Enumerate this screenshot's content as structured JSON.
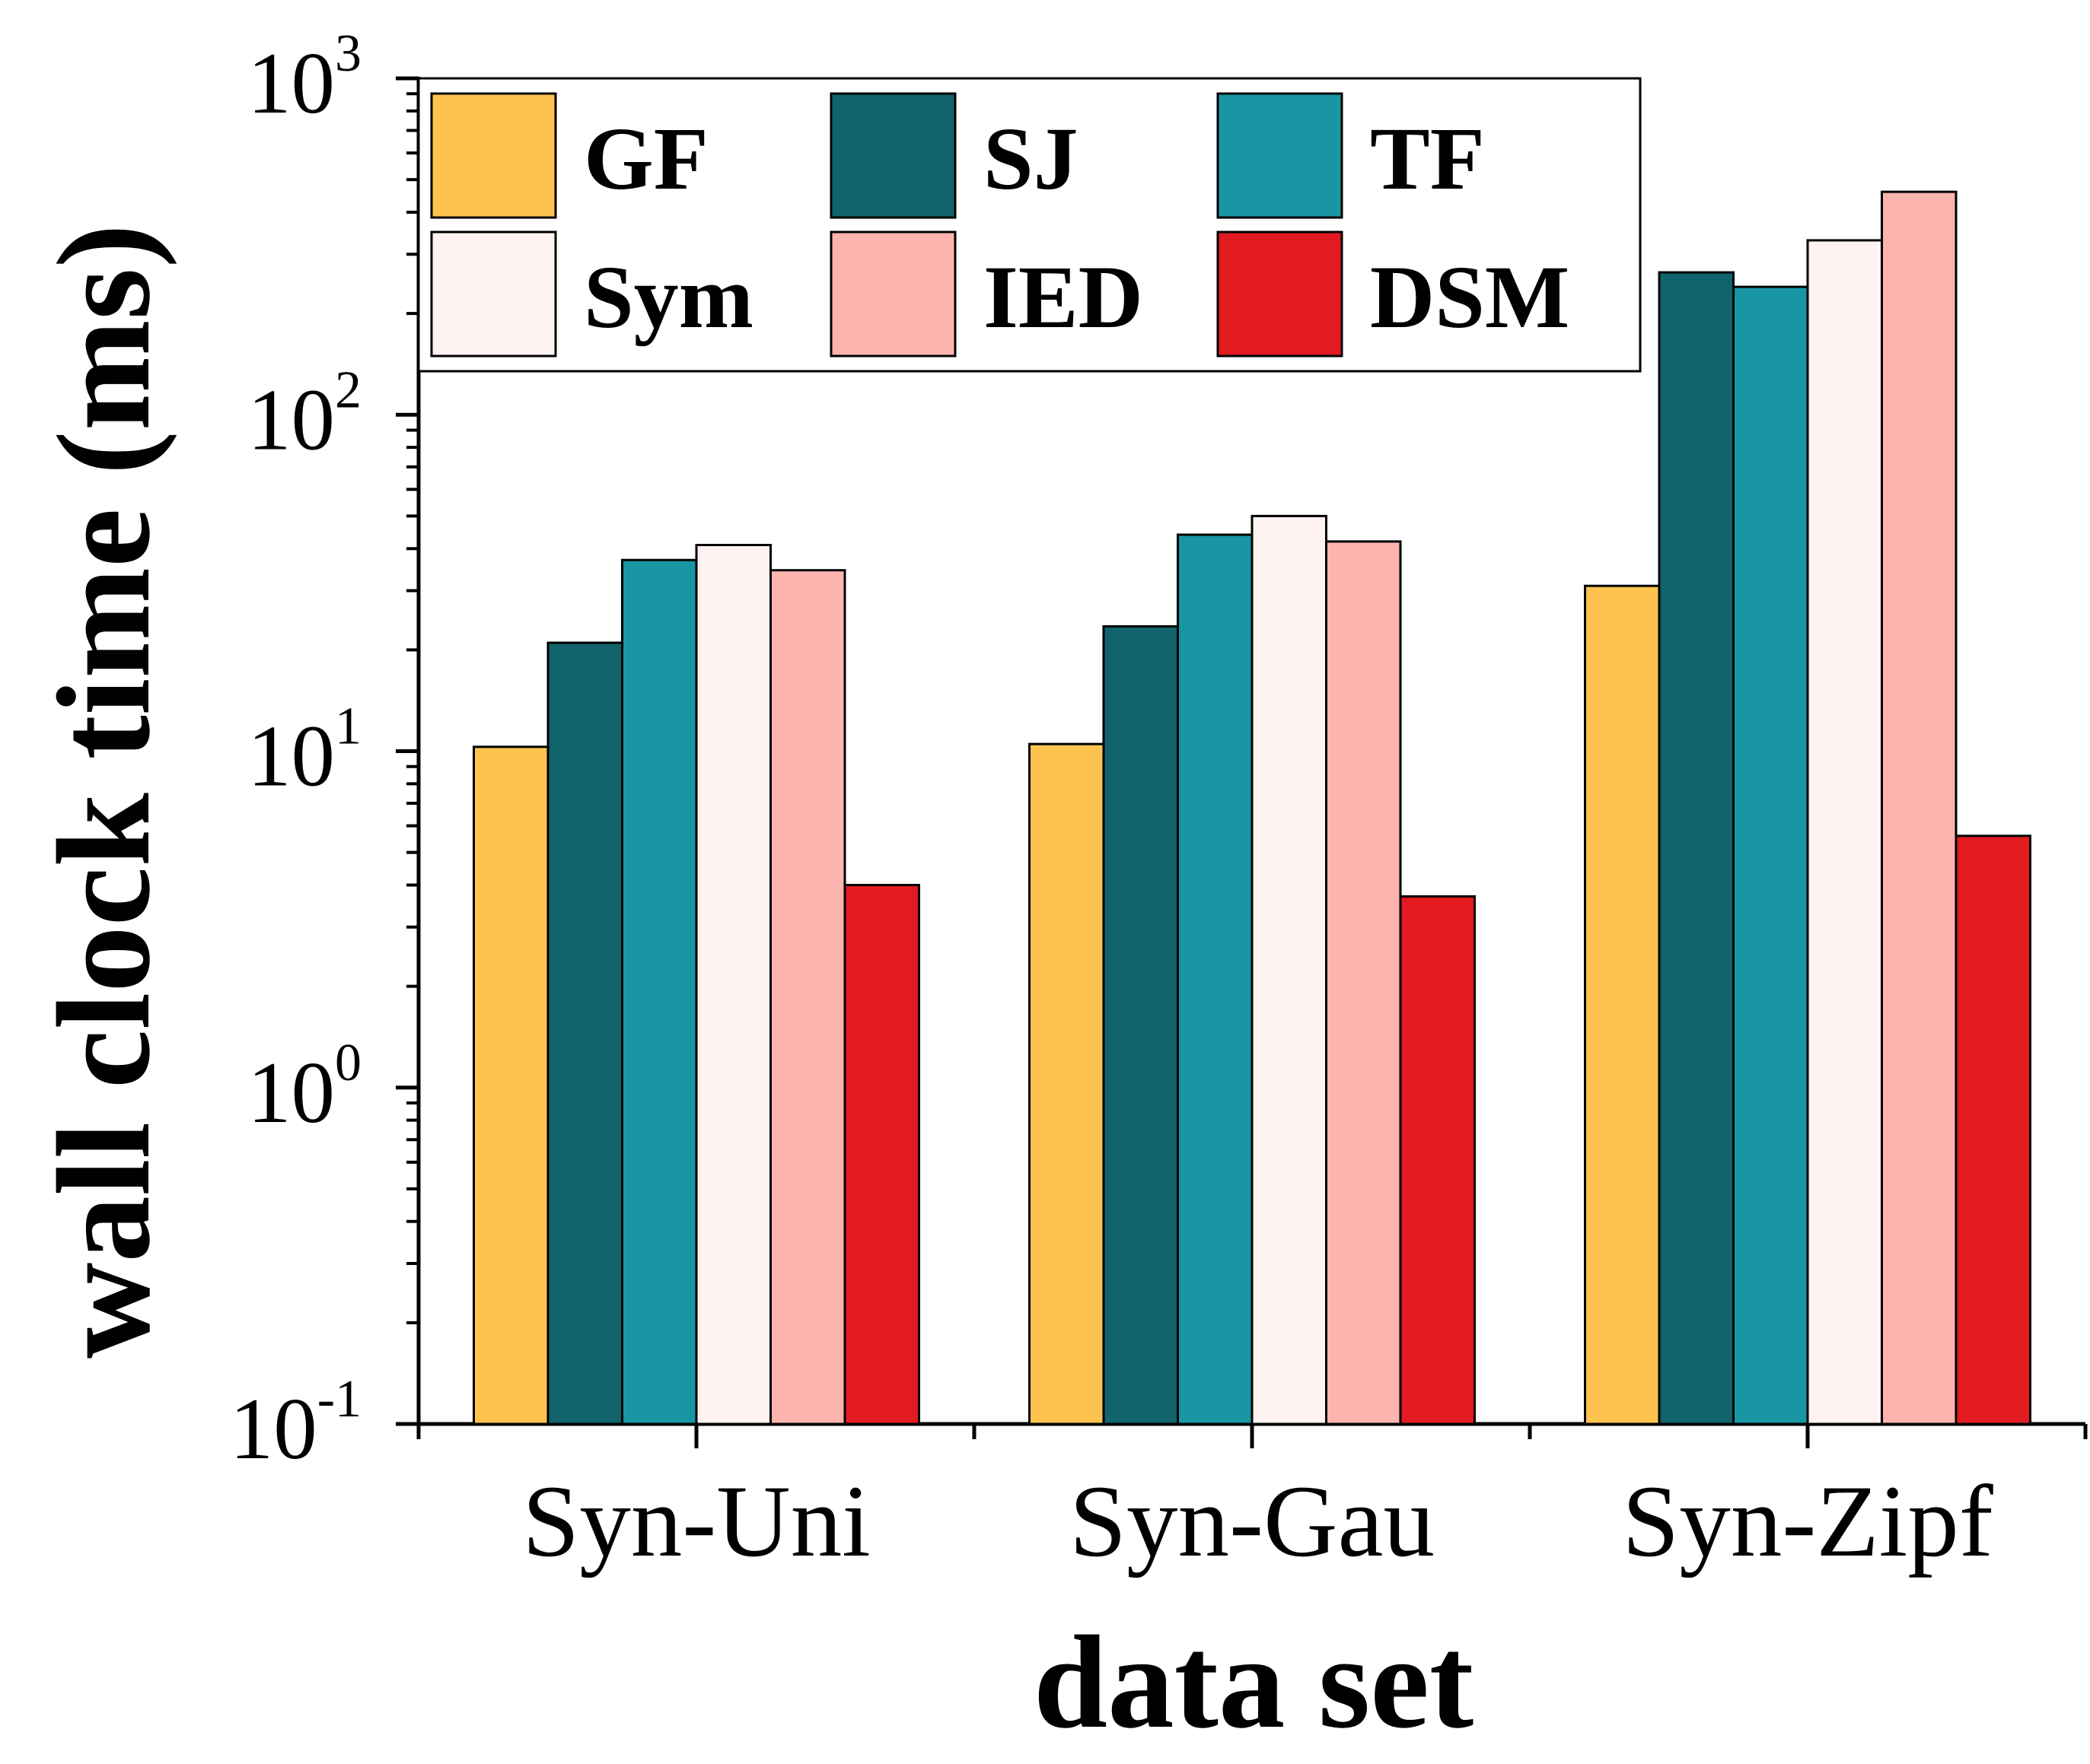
{
  "chart_data": {
    "type": "bar",
    "title": "",
    "xlabel": "data set",
    "ylabel": "wall clock time (ms)",
    "yscale": "log",
    "ylim": [
      0.1,
      1000
    ],
    "yticks": [
      {
        "value": 0.1,
        "base": "10",
        "exp": "-1"
      },
      {
        "value": 1,
        "base": "10",
        "exp": "0"
      },
      {
        "value": 10,
        "base": "10",
        "exp": "1"
      },
      {
        "value": 100,
        "base": "10",
        "exp": "2"
      },
      {
        "value": 1000,
        "base": "10",
        "exp": "3"
      }
    ],
    "categories": [
      "Syn-Uni",
      "Syn-Gau",
      "Syn-Zipf"
    ],
    "series": [
      {
        "name": "GF",
        "color": "#FDC34E",
        "values": [
          10.3,
          10.5,
          31
        ]
      },
      {
        "name": "SJ",
        "color": "#11646C",
        "values": [
          21,
          23.5,
          265
        ]
      },
      {
        "name": "TF",
        "color": "#1896A4",
        "values": [
          37,
          44,
          240
        ]
      },
      {
        "name": "Sym",
        "color": "#FEF3F0",
        "values": [
          41,
          50,
          330
        ]
      },
      {
        "name": "IED",
        "color": "#FDB3AE",
        "values": [
          34.5,
          42,
          460
        ]
      },
      {
        "name": "DSM",
        "color": "#E11B1F",
        "values": [
          4.0,
          3.7,
          5.6
        ]
      }
    ],
    "legend": {
      "position": "top-left",
      "columns": 3
    }
  }
}
